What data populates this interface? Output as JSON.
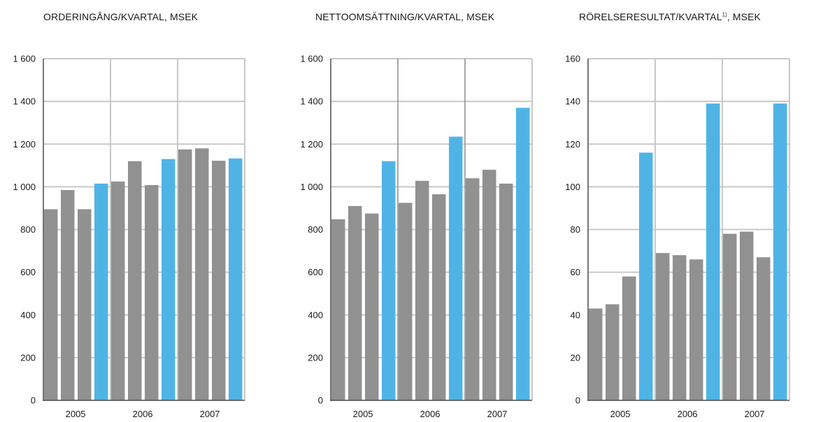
{
  "chart_data": [
    {
      "type": "bar",
      "title": "ORDERINGÅNG/KVARTAL, MSEK",
      "title_sup": "",
      "xlabel": "",
      "ylabel": "",
      "ylim": [
        0,
        1600
      ],
      "yticks": [
        0,
        200,
        400,
        600,
        800,
        1000,
        1200,
        1400,
        1600
      ],
      "ytick_labels": [
        "0",
        "200",
        "400",
        "600",
        "800",
        "1 000",
        "1 200",
        "1 400",
        "1 600"
      ],
      "year_labels": [
        "2005",
        "2006",
        "2007"
      ],
      "values": [
        895,
        985,
        895,
        1015,
        1025,
        1120,
        1008,
        1130,
        1175,
        1180,
        1122,
        1133
      ],
      "highlighted": [
        3,
        7,
        11
      ],
      "grid": true
    },
    {
      "type": "bar",
      "title": "NETTOOMSÄTTNING/KVARTAL, MSEK",
      "title_sup": "",
      "xlabel": "",
      "ylabel": "",
      "ylim": [
        0,
        1600
      ],
      "yticks": [
        0,
        200,
        400,
        600,
        800,
        1000,
        1200,
        1400,
        1600
      ],
      "ytick_labels": [
        "0",
        "200",
        "400",
        "600",
        "800",
        "1 000",
        "1 200",
        "1 400",
        "1 600"
      ],
      "year_labels": [
        "2005",
        "2006",
        "2007"
      ],
      "values": [
        848,
        910,
        875,
        1120,
        925,
        1028,
        965,
        1235,
        1040,
        1080,
        1015,
        1370
      ],
      "highlighted": [
        3,
        7,
        11
      ],
      "grid": true
    },
    {
      "type": "bar",
      "title": "RÖRELSERESULTAT/KVARTAL",
      "title_sup": "1)",
      "title_suffix": ", MSEK",
      "xlabel": "",
      "ylabel": "",
      "ylim": [
        0,
        160
      ],
      "yticks": [
        0,
        20,
        40,
        60,
        80,
        100,
        120,
        140,
        160
      ],
      "ytick_labels": [
        "0",
        "20",
        "40",
        "60",
        "80",
        "100",
        "120",
        "140",
        "160"
      ],
      "year_labels": [
        "2005",
        "2006",
        "2007"
      ],
      "values": [
        43,
        45,
        58,
        116,
        69,
        68,
        66,
        139,
        78,
        79,
        67,
        139
      ],
      "highlighted": [
        3,
        7,
        11
      ],
      "grid": true
    }
  ],
  "colors": {
    "bar": "#919191",
    "highlight": "#4fb4e5",
    "grid": "#c8c8c8",
    "axis": "#4a4a4a",
    "text": "#1a1a1a"
  }
}
